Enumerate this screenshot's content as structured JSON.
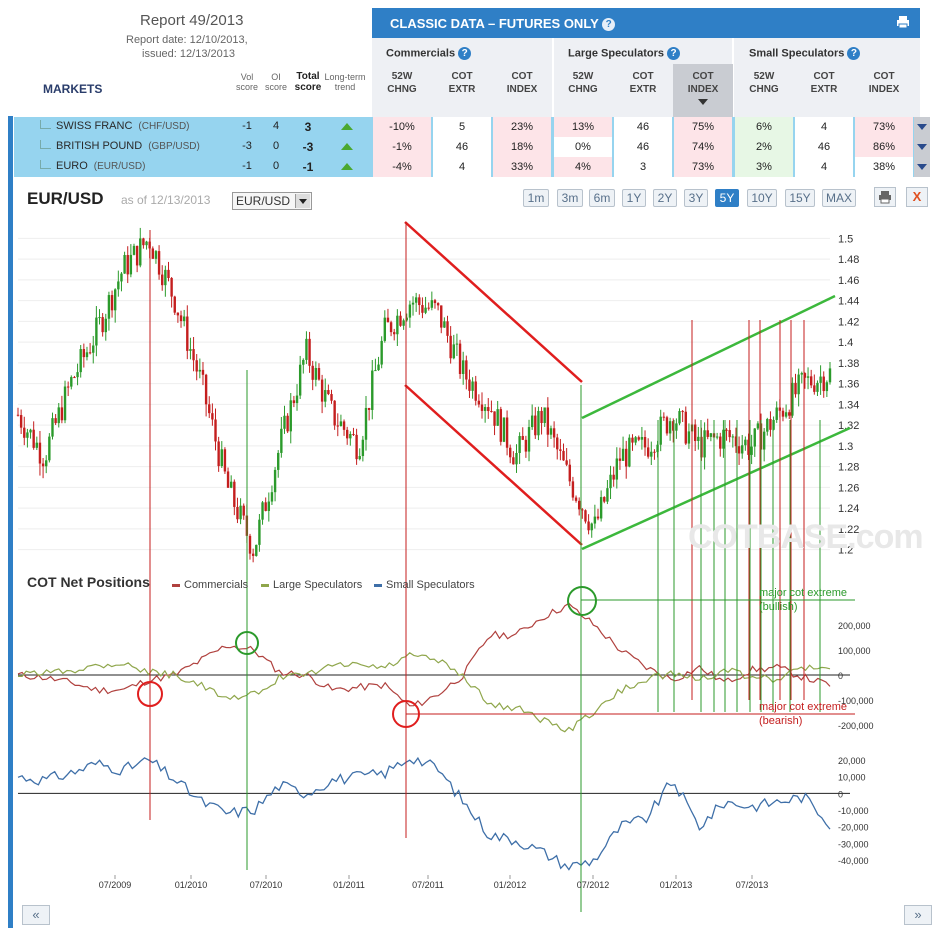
{
  "report": {
    "title": "Report 49/2013",
    "date": "Report date: 12/10/2013,",
    "issued": "issued: 12/13/2013"
  },
  "markets_header": {
    "markets": "MARKETS",
    "vol_score": [
      "Vol",
      "score"
    ],
    "oi_score": [
      "OI",
      "score"
    ],
    "total_score": [
      "Total",
      "score"
    ],
    "trend": [
      "Long-term",
      "trend"
    ]
  },
  "classic": {
    "title": "CLASSIC DATA – FUTURES ONLY",
    "groups": [
      "Commercials",
      "Large Speculators",
      "Small Speculators"
    ],
    "cols": [
      [
        "52W",
        "CHNG"
      ],
      [
        "COT",
        "EXTR"
      ],
      [
        "COT",
        "INDEX"
      ],
      [
        "52W",
        "CHNG"
      ],
      [
        "COT",
        "EXTR"
      ],
      [
        "COT",
        "INDEX"
      ],
      [
        "52W",
        "CHNG"
      ],
      [
        "COT",
        "EXTR"
      ],
      [
        "COT",
        "INDEX"
      ]
    ]
  },
  "rows": [
    {
      "name": "SWISS FRANC",
      "sym": "(CHF/USD)",
      "vol": "-1",
      "oi": "4",
      "total": "3",
      "cells": [
        "-10%",
        "5",
        "23%",
        "13%",
        "46",
        "75%",
        "6%",
        "4",
        "73%"
      ]
    },
    {
      "name": "BRITISH POUND",
      "sym": "(GBP/USD)",
      "vol": "-3",
      "oi": "0",
      "total": "-3",
      "cells": [
        "-1%",
        "46",
        "18%",
        "0%",
        "46",
        "74%",
        "2%",
        "46",
        "86%"
      ]
    },
    {
      "name": "EURO",
      "sym": "(EUR/USD)",
      "vol": "-1",
      "oi": "0",
      "total": "-1",
      "cells": [
        "-4%",
        "4",
        "33%",
        "4%",
        "3",
        "73%",
        "3%",
        "4",
        "38%"
      ]
    }
  ],
  "chart_header": {
    "pair": "EUR/USD",
    "as_of": "as of 12/13/2013",
    "select": "EUR/USD",
    "ranges": [
      "1m",
      "3m",
      "6m",
      "1Y",
      "2Y",
      "3Y",
      "5Y",
      "10Y",
      "15Y",
      "MAX"
    ],
    "active_range": "5Y",
    "close": "X"
  },
  "cot_title": "COT Net Positions",
  "legend": [
    "Commercials",
    "Large Speculators",
    "Small Speculators"
  ],
  "watermark": "COTBASE.com",
  "annotations": {
    "bull": [
      "major cot extreme",
      "(bullish)"
    ],
    "bear": [
      "major cot extreme",
      "(bearish)"
    ]
  },
  "colors": {
    "accent": "#2f7fc6",
    "commercials": "#b0413e",
    "large": "#8fa64b",
    "small": "#3e6fa8",
    "up": "#2b9a2b",
    "down": "#c41e1e"
  },
  "chart_data": [
    {
      "type": "line",
      "title": "EUR/USD",
      "yticks": [
        1.2,
        1.22,
        1.24,
        1.26,
        1.28,
        1.3,
        1.32,
        1.34,
        1.36,
        1.38,
        1.4,
        1.42,
        1.44,
        1.46,
        1.48,
        1.5
      ],
      "ylim": [
        1.19,
        1.51
      ],
      "xticks": [
        "07/2009",
        "01/2010",
        "07/2010",
        "01/2011",
        "07/2011",
        "01/2012",
        "07/2012",
        "01/2013",
        "07/2013"
      ],
      "x": [
        "2009-01",
        "2009-03",
        "2009-05",
        "2009-07",
        "2009-09",
        "2009-11",
        "2010-01",
        "2010-03",
        "2010-05",
        "2010-06",
        "2010-08",
        "2010-10",
        "2010-12",
        "2011-01",
        "2011-03",
        "2011-05",
        "2011-07",
        "2011-09",
        "2011-11",
        "2012-01",
        "2012-03",
        "2012-05",
        "2012-07",
        "2012-09",
        "2012-11",
        "2013-01",
        "2013-03",
        "2013-05",
        "2013-07",
        "2013-09",
        "2013-11",
        "2013-12"
      ],
      "values": [
        1.33,
        1.29,
        1.36,
        1.41,
        1.47,
        1.5,
        1.44,
        1.36,
        1.26,
        1.2,
        1.3,
        1.39,
        1.33,
        1.3,
        1.41,
        1.44,
        1.43,
        1.37,
        1.34,
        1.29,
        1.33,
        1.27,
        1.22,
        1.29,
        1.3,
        1.33,
        1.3,
        1.31,
        1.3,
        1.33,
        1.36,
        1.37
      ]
    },
    {
      "type": "line",
      "title": "COT Net Positions",
      "yticks": [
        -200000,
        -100000,
        0,
        100000,
        200000
      ],
      "ylim": [
        -260000,
        300000
      ],
      "series": [
        {
          "name": "Commercials",
          "values": [
            0,
            -10000,
            -30000,
            -60000,
            -60000,
            -20000,
            0,
            60000,
            120000,
            100000,
            10000,
            0,
            -60000,
            -50000,
            -40000,
            -130000,
            -80000,
            0,
            160000,
            160000,
            230000,
            280000,
            200000,
            100000,
            30000,
            -20000,
            30000,
            -30000,
            20000,
            30000,
            -10000,
            -40000
          ]
        },
        {
          "name": "Large Speculators",
          "values": [
            0,
            10000,
            20000,
            40000,
            50000,
            10000,
            0,
            -40000,
            -100000,
            -80000,
            -10000,
            0,
            40000,
            40000,
            30000,
            80000,
            60000,
            0,
            -120000,
            -130000,
            -180000,
            -220000,
            -150000,
            -60000,
            -20000,
            10000,
            -20000,
            20000,
            -10000,
            -20000,
            30000,
            20000
          ]
        }
      ]
    },
    {
      "type": "line",
      "title": "Small Speculators",
      "yticks": [
        -40000,
        -30000,
        -20000,
        -10000,
        0,
        10000,
        20000
      ],
      "ylim": [
        -46000,
        26000
      ],
      "series": [
        {
          "name": "Small Speculators",
          "values": [
            10000,
            8000,
            12000,
            18000,
            14000,
            20000,
            8000,
            -5000,
            -12000,
            -10000,
            5000,
            0,
            8000,
            10000,
            12000,
            22000,
            15000,
            -5000,
            -25000,
            -28000,
            -35000,
            -44000,
            -40000,
            -20000,
            -15000,
            8000,
            -20000,
            -5000,
            -8000,
            -5000,
            -2000,
            -18000
          ]
        }
      ]
    }
  ]
}
